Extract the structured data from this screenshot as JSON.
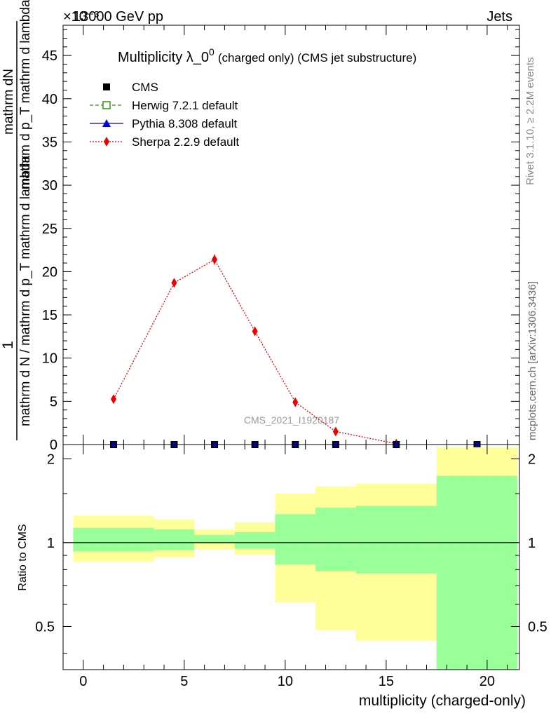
{
  "header": {
    "left": "13000 GeV pp",
    "right": "Jets",
    "multiplier": "×10⁻³"
  },
  "side_text": {
    "rivet": "Rivet 3.1.10, ≥ 2.2M events",
    "mcplots": "mcplots.cern.ch [arXiv:1306.3436]"
  },
  "chart_data": [
    {
      "type": "scatter",
      "title": "Multiplicity λ_0⁰ (charged only) (CMS jet substructure)",
      "title_main": "Multiplicity λ_0",
      "title_sup": "0",
      "title_rest": "(charged only) (CMS jet substructure)",
      "watermark": "CMS_2021_I1920187",
      "ylabel_top": "mathrm dN",
      "ylabel_bottom": "mathrm d p_T mathrm d lambda",
      "ylabel_den": "mathrm d N / mathrm d p_T mathrm d lambda",
      "ylabel_num": "1",
      "xlim": [
        -1,
        21.6
      ],
      "ylim": [
        0,
        48.5
      ],
      "y_unit_scale": "1e-3",
      "yticks": [
        0,
        5,
        10,
        15,
        20,
        25,
        30,
        35,
        40,
        45
      ],
      "legend": {
        "placement": "top-left",
        "entries": [
          {
            "name": "CMS",
            "color": "#000000",
            "marker": "square",
            "line": "none"
          },
          {
            "name": "Herwig 7.2.1 default",
            "color": "#339900",
            "marker": "open-square",
            "line": "dashed"
          },
          {
            "name": "Pythia 8.308 default",
            "color": "#0000cc",
            "marker": "triangle",
            "line": "solid"
          },
          {
            "name": "Sherpa 2.2.9 default",
            "color": "#ee0000",
            "marker": "diamond",
            "line": "dotted"
          }
        ]
      },
      "series": [
        {
          "name": "Sherpa 2.2.9 default",
          "x": [
            1.5,
            4.5,
            6.5,
            8.5,
            10.5,
            12.5,
            15.5
          ],
          "y": [
            5.25,
            18.7,
            21.4,
            13.1,
            4.9,
            1.5,
            0.1
          ],
          "yerr": [
            0.3,
            0.5,
            0.6,
            0.4,
            0.2,
            0.1,
            0.0
          ]
        },
        {
          "name": "CMS",
          "x": [
            1.5,
            4.5,
            6.5,
            8.5,
            10.5,
            12.5,
            15.5,
            19.5
          ],
          "y": [
            0,
            0,
            0,
            0,
            0,
            0,
            0,
            0
          ]
        }
      ]
    },
    {
      "type": "area",
      "ylabel": "Ratio to CMS",
      "xlabel": "multiplicity (charged-only)",
      "xlim": [
        -1,
        21.6
      ],
      "ylim": [
        0.35,
        2.25
      ],
      "xticks": [
        0,
        5,
        10,
        15,
        20
      ],
      "yticks": [
        0.5,
        1,
        2
      ],
      "reference_line": 1,
      "bins": [
        {
          "lo": -0.5,
          "hi": 3.5,
          "green": [
            0.93,
            1.13
          ],
          "yellow": [
            0.855,
            1.25
          ]
        },
        {
          "lo": 3.5,
          "hi": 5.5,
          "green": [
            0.94,
            1.115
          ],
          "yellow": [
            0.885,
            1.21
          ]
        },
        {
          "lo": 5.5,
          "hi": 7.5,
          "green": [
            0.995,
            1.065
          ],
          "yellow": [
            0.945,
            1.115
          ]
        },
        {
          "lo": 7.5,
          "hi": 9.5,
          "green": [
            0.95,
            1.09
          ],
          "yellow": [
            0.905,
            1.18
          ]
        },
        {
          "lo": 9.5,
          "hi": 11.5,
          "green": [
            0.835,
            1.265
          ],
          "yellow": [
            0.61,
            1.5
          ]
        },
        {
          "lo": 11.5,
          "hi": 13.5,
          "green": [
            0.79,
            1.335
          ],
          "yellow": [
            0.485,
            1.59
          ]
        },
        {
          "lo": 13.5,
          "hi": 17.5,
          "green": [
            0.775,
            1.355
          ],
          "yellow": [
            0.445,
            1.63
          ]
        },
        {
          "lo": 17.5,
          "hi": 21.5,
          "green": [
            0.35,
            1.735
          ],
          "yellow": [
            0.35,
            2.2
          ]
        }
      ],
      "colors": {
        "green": "#99ff99",
        "yellow": "#ffff99"
      }
    }
  ]
}
